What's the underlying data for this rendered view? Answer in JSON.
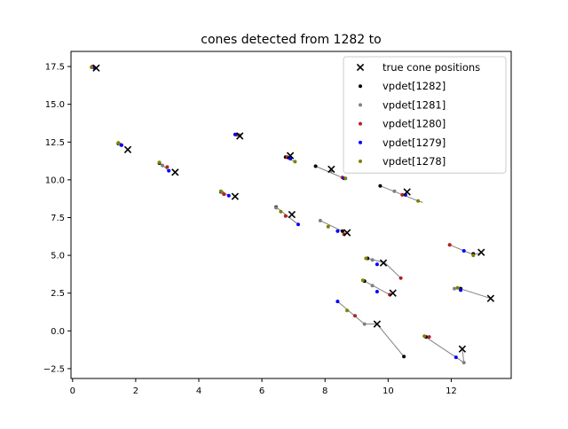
{
  "chart_data": {
    "type": "scatter",
    "title": "cones detected from 1282 to",
    "xlabel": "",
    "ylabel": "",
    "xlim": [
      -0.05,
      13.9
    ],
    "ylim": [
      -3.15,
      18.5
    ],
    "xticks": [
      0,
      2,
      4,
      6,
      8,
      10,
      12
    ],
    "yticks": [
      -2.5,
      0.0,
      2.5,
      5.0,
      7.5,
      10.0,
      12.5,
      15.0,
      17.5
    ],
    "xtick_labels": [
      "0",
      "2",
      "4",
      "6",
      "8",
      "10",
      "12"
    ],
    "ytick_labels": [
      "−2.5",
      "0.0",
      "2.5",
      "5.0",
      "7.5",
      "10.0",
      "12.5",
      "15.0",
      "17.5"
    ],
    "grid": false,
    "legend_position": "top-right",
    "legend": [
      {
        "label": "true cone positions",
        "marker": "x",
        "color": "#000000"
      },
      {
        "label": "vpdet[1282]",
        "marker": "dot",
        "color": "#000000"
      },
      {
        "label": "vpdet[1281]",
        "marker": "dot",
        "color": "#808080"
      },
      {
        "label": "vpdet[1280]",
        "marker": "dot",
        "color": "#b22222"
      },
      {
        "label": "vpdet[1279]",
        "marker": "dot",
        "color": "#0000ff"
      },
      {
        "label": "vpdet[1278]",
        "marker": "dot",
        "color": "#808000"
      }
    ],
    "true_cones": [
      [
        0.75,
        17.4
      ],
      [
        1.75,
        12.0
      ],
      [
        3.25,
        10.5
      ],
      [
        5.3,
        12.9
      ],
      [
        5.15,
        8.9
      ],
      [
        6.9,
        11.6
      ],
      [
        8.2,
        10.7
      ],
      [
        6.95,
        7.7
      ],
      [
        10.6,
        9.2
      ],
      [
        8.7,
        6.5
      ],
      [
        9.85,
        4.5
      ],
      [
        12.95,
        5.2
      ],
      [
        10.15,
        2.5
      ],
      [
        13.25,
        2.15
      ],
      [
        9.65,
        0.45
      ],
      [
        12.35,
        -1.2
      ]
    ],
    "tracks": [
      {
        "color": "#000000",
        "label": "vpdet[1282]",
        "points": [
          [
            0.65,
            17.45
          ],
          [
            1.45,
            12.4
          ],
          [
            2.75,
            11.1
          ],
          [
            5.2,
            13.0
          ],
          [
            4.7,
            9.2
          ],
          [
            6.75,
            11.5
          ],
          [
            7.7,
            10.9
          ],
          [
            6.45,
            8.2
          ],
          [
            9.75,
            9.6
          ],
          [
            8.55,
            6.6
          ],
          [
            9.35,
            4.8
          ],
          [
            12.7,
            5.1
          ],
          [
            9.25,
            3.3
          ],
          [
            12.3,
            2.8
          ],
          [
            10.5,
            -1.7
          ],
          [
            11.2,
            -0.4
          ]
        ]
      },
      {
        "color": "#808080",
        "label": "vpdet[1281]",
        "points": [
          [
            0.68,
            17.45
          ],
          [
            1.5,
            12.35
          ],
          [
            2.85,
            10.95
          ],
          [
            5.25,
            12.98
          ],
          [
            4.75,
            9.15
          ],
          [
            6.85,
            11.45
          ],
          [
            8.2,
            10.6
          ],
          [
            6.45,
            8.15
          ],
          [
            10.2,
            9.25
          ],
          [
            7.85,
            7.3
          ],
          [
            9.5,
            4.7
          ],
          [
            11.95,
            5.7
          ],
          [
            9.5,
            3.0
          ],
          [
            12.1,
            2.8
          ],
          [
            9.25,
            0.45
          ],
          [
            12.4,
            -2.1
          ]
        ]
      },
      {
        "color": "#b22222",
        "label": "vpdet[1280]",
        "points": [
          [
            0.63,
            17.5
          ],
          [
            1.55,
            12.3
          ],
          [
            3.0,
            10.85
          ],
          [
            5.2,
            13.0
          ],
          [
            4.8,
            9.05
          ],
          [
            6.8,
            11.5
          ],
          [
            8.55,
            10.15
          ],
          [
            6.75,
            7.6
          ],
          [
            10.45,
            9.0
          ],
          [
            8.6,
            6.4
          ],
          [
            10.4,
            3.5
          ],
          [
            11.95,
            5.7
          ],
          [
            10.05,
            2.4
          ],
          [
            12.3,
            2.7
          ],
          [
            8.95,
            1.0
          ],
          [
            11.3,
            -0.4
          ]
        ]
      },
      {
        "color": "#0000ff",
        "label": "vpdet[1279]",
        "points": [
          [
            0.7,
            17.4
          ],
          [
            1.55,
            12.3
          ],
          [
            3.05,
            10.6
          ],
          [
            5.15,
            13.0
          ],
          [
            4.95,
            8.95
          ],
          [
            6.9,
            11.4
          ],
          [
            8.6,
            10.1
          ],
          [
            7.15,
            7.05
          ],
          [
            10.55,
            9.0
          ],
          [
            8.4,
            6.6
          ],
          [
            9.65,
            4.4
          ],
          [
            12.4,
            5.3
          ],
          [
            9.65,
            2.6
          ],
          [
            12.3,
            2.7
          ],
          [
            8.4,
            1.95
          ],
          [
            12.15,
            -1.75
          ]
        ]
      },
      {
        "color": "#808000",
        "label": "vpdet[1278]",
        "points": [
          [
            0.6,
            17.45
          ],
          [
            1.45,
            12.45
          ],
          [
            2.75,
            11.15
          ],
          [
            5.3,
            12.95
          ],
          [
            4.7,
            9.25
          ],
          [
            7.05,
            11.2
          ],
          [
            8.65,
            10.1
          ],
          [
            6.6,
            7.9
          ],
          [
            10.95,
            8.6
          ],
          [
            8.1,
            6.9
          ],
          [
            9.3,
            4.8
          ],
          [
            12.7,
            5.0
          ],
          [
            9.2,
            3.35
          ],
          [
            12.2,
            2.85
          ],
          [
            8.7,
            1.35
          ],
          [
            11.15,
            -0.35
          ]
        ]
      }
    ],
    "connectors": [
      [
        [
          9.75,
          9.6
        ],
        [
          10.95,
          8.6
        ],
        [
          11.1,
          8.5
        ]
      ],
      [
        [
          7.7,
          10.9
        ],
        [
          8.6,
          10.1
        ]
      ],
      [
        [
          7.85,
          7.3
        ],
        [
          8.6,
          6.55
        ]
      ],
      [
        [
          6.45,
          8.2
        ],
        [
          7.15,
          7.05
        ]
      ],
      [
        [
          9.35,
          4.8
        ],
        [
          9.9,
          4.5
        ],
        [
          10.4,
          3.5
        ]
      ],
      [
        [
          9.2,
          3.35
        ],
        [
          10.05,
          2.4
        ],
        [
          10.15,
          2.5
        ]
      ],
      [
        [
          11.95,
          5.7
        ],
        [
          12.4,
          5.3
        ],
        [
          12.7,
          5.05
        ],
        [
          12.9,
          5.15
        ]
      ],
      [
        [
          12.2,
          2.85
        ],
        [
          13.25,
          2.15
        ]
      ],
      [
        [
          8.4,
          1.95
        ],
        [
          9.25,
          0.45
        ],
        [
          9.65,
          0.45
        ],
        [
          10.5,
          -1.7
        ]
      ],
      [
        [
          11.15,
          -0.35
        ],
        [
          12.15,
          -1.75
        ],
        [
          12.4,
          -2.1
        ],
        [
          12.35,
          -1.2
        ]
      ],
      [
        [
          2.75,
          11.15
        ],
        [
          3.05,
          10.6
        ]
      ],
      [
        [
          4.7,
          9.25
        ],
        [
          4.95,
          8.95
        ]
      ],
      [
        [
          6.75,
          11.5
        ],
        [
          7.05,
          11.2
        ]
      ]
    ]
  }
}
